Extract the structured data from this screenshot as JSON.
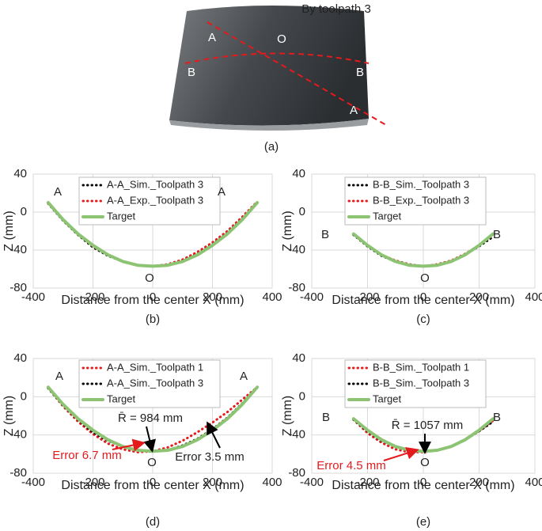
{
  "photo": {
    "title": "By toolpath 3",
    "labels": [
      "A",
      "O",
      "B",
      "B",
      "A"
    ],
    "caption": "(a)"
  },
  "chart_data": [
    {
      "type": "line",
      "caption": "(b)",
      "xlabel": "Distance from the center X (mm)",
      "ylabel": "Z (mm)",
      "x": [
        -350,
        -300,
        -250,
        -200,
        -150,
        -100,
        -50,
        0,
        50,
        100,
        150,
        200,
        250,
        300,
        350
      ],
      "series": [
        {
          "name": "A-A_Sim._Toolpath 3",
          "color": "#000000",
          "style": "dotted",
          "values": [
            9,
            -9,
            -24,
            -37,
            -46,
            -52,
            -56,
            -57,
            -56,
            -51,
            -44,
            -34,
            -22,
            -7,
            10
          ]
        },
        {
          "name": "A-A_Exp._Toolpath 3",
          "color": "#e41a1c",
          "style": "dotted",
          "values": [
            9,
            -8,
            -23,
            -36,
            -45,
            -52,
            -56,
            -57,
            -55,
            -50,
            -42,
            -32,
            -20,
            -5,
            11
          ]
        },
        {
          "name": "Target",
          "color": "#8cc474",
          "style": "solid",
          "values": [
            10,
            -8,
            -23,
            -35,
            -45,
            -52,
            -56,
            -57,
            -56,
            -52,
            -45,
            -35,
            -23,
            -8,
            10
          ]
        }
      ],
      "xlim": [
        -400,
        400
      ],
      "xticks": [
        -400,
        -200,
        0,
        200,
        400
      ],
      "ylim": [
        -80,
        40
      ],
      "yticks": [
        -80,
        -40,
        0,
        40
      ],
      "grid": true,
      "annotations": [
        {
          "text": "A",
          "color": "#222222"
        },
        {
          "text": "A",
          "color": "#222222"
        },
        {
          "text": "O",
          "color": "#222222"
        }
      ]
    },
    {
      "type": "line",
      "caption": "(c)",
      "xlabel": "Distance from the center X (mm)",
      "ylabel": "Z (mm)",
      "x": [
        -250,
        -200,
        -150,
        -100,
        -50,
        0,
        50,
        100,
        150,
        200,
        250
      ],
      "series": [
        {
          "name": "B-B_Sim._Toolpath 3",
          "color": "#000000",
          "style": "dotted",
          "values": [
            -24,
            -36,
            -46,
            -52,
            -56,
            -57,
            -56,
            -52,
            -45,
            -36,
            -26
          ]
        },
        {
          "name": "B-B_Exp._Toolpath 3",
          "color": "#e41a1c",
          "style": "dotted",
          "values": [
            -23,
            -35,
            -45,
            -51,
            -55,
            -57,
            -55,
            -51,
            -44,
            -35,
            -24
          ]
        },
        {
          "name": "Target",
          "color": "#8cc474",
          "style": "solid",
          "values": [
            -23,
            -35,
            -45,
            -52,
            -56,
            -57,
            -56,
            -52,
            -45,
            -35,
            -23
          ]
        }
      ],
      "xlim": [
        -400,
        400
      ],
      "xticks": [
        -400,
        -200,
        0,
        200,
        400
      ],
      "ylim": [
        -80,
        40
      ],
      "yticks": [
        -80,
        -40,
        0,
        40
      ],
      "grid": true,
      "annotations": [
        {
          "text": "B",
          "color": "#222222"
        },
        {
          "text": "B",
          "color": "#222222"
        },
        {
          "text": "O",
          "color": "#222222"
        }
      ]
    },
    {
      "type": "line",
      "caption": "(d)",
      "xlabel": "Distance from the center X (mm)",
      "ylabel": "Z (mm)",
      "x": [
        -350,
        -300,
        -250,
        -200,
        -150,
        -100,
        -50,
        0,
        50,
        100,
        150,
        200,
        250,
        300,
        350
      ],
      "series": [
        {
          "name": "A-A_Sim._Toolpath 1",
          "color": "#e41a1c",
          "style": "dotted",
          "values": [
            9,
            -10,
            -26,
            -39,
            -49,
            -55,
            -58,
            -57,
            -53,
            -46,
            -37,
            -27,
            -16,
            -3,
            10
          ]
        },
        {
          "name": "A-A_Sim._Toolpath 3",
          "color": "#000000",
          "style": "dotted",
          "values": [
            9,
            -9,
            -24,
            -37,
            -46,
            -52,
            -56,
            -57,
            -56,
            -51,
            -44,
            -34,
            -22,
            -7,
            10
          ]
        },
        {
          "name": "Target",
          "color": "#8cc474",
          "style": "solid",
          "values": [
            10,
            -8,
            -23,
            -35,
            -45,
            -52,
            -56,
            -57,
            -56,
            -52,
            -45,
            -35,
            -23,
            -8,
            10
          ]
        }
      ],
      "xlim": [
        -400,
        400
      ],
      "xticks": [
        -400,
        -200,
        0,
        200,
        400
      ],
      "ylim": [
        -80,
        40
      ],
      "yticks": [
        -80,
        -40,
        0,
        40
      ],
      "grid": true,
      "annotations": [
        {
          "text": "A",
          "color": "#222222"
        },
        {
          "text": "A",
          "color": "#222222"
        },
        {
          "text": "O",
          "color": "#222222"
        },
        {
          "text": "R̄ = 984 mm",
          "color": "#222222"
        },
        {
          "text": "Error 6.7 mm",
          "color": "#e41a1c"
        },
        {
          "text": "Error 3.5 mm",
          "color": "#222222"
        }
      ]
    },
    {
      "type": "line",
      "caption": "(e)",
      "xlabel": "Distance from the center X (mm)",
      "ylabel": "Z (mm)",
      "x": [
        -250,
        -200,
        -150,
        -100,
        -50,
        0,
        50,
        100,
        150,
        200,
        250
      ],
      "series": [
        {
          "name": "B-B_Sim._Toolpath 1",
          "color": "#e41a1c",
          "style": "dotted",
          "values": [
            -24,
            -38,
            -48,
            -55,
            -58,
            -58,
            -56,
            -52,
            -45,
            -36,
            -25
          ]
        },
        {
          "name": "B-B_Sim._Toolpath 3",
          "color": "#000000",
          "style": "dotted",
          "values": [
            -24,
            -36,
            -46,
            -52,
            -56,
            -57,
            -56,
            -52,
            -45,
            -36,
            -26
          ]
        },
        {
          "name": "Target",
          "color": "#8cc474",
          "style": "solid",
          "values": [
            -23,
            -35,
            -45,
            -52,
            -56,
            -57,
            -56,
            -52,
            -45,
            -35,
            -23
          ]
        }
      ],
      "xlim": [
        -400,
        400
      ],
      "xticks": [
        -400,
        -200,
        0,
        200,
        400
      ],
      "ylim": [
        -80,
        40
      ],
      "yticks": [
        -80,
        -40,
        0,
        40
      ],
      "grid": true,
      "annotations": [
        {
          "text": "B",
          "color": "#222222"
        },
        {
          "text": "B",
          "color": "#222222"
        },
        {
          "text": "O",
          "color": "#222222"
        },
        {
          "text": "R̄ = 1057 mm",
          "color": "#222222"
        },
        {
          "text": "Error 4.5 mm",
          "color": "#e41a1c"
        }
      ]
    }
  ]
}
